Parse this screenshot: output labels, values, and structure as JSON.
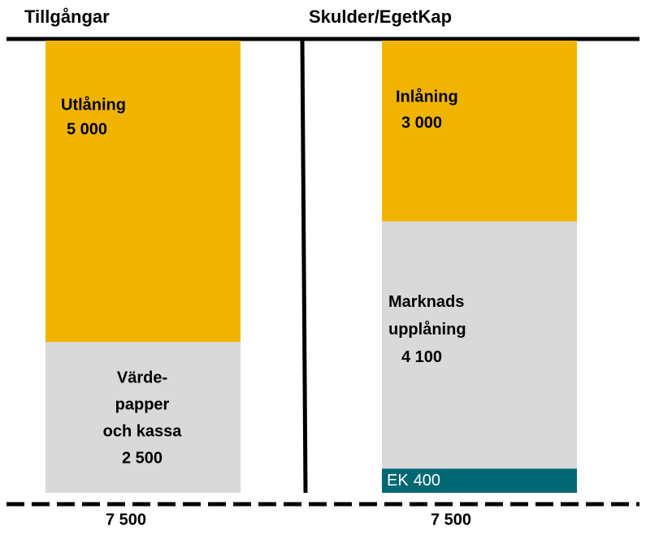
{
  "columns": [
    {
      "header": "Tillgångar",
      "total": 7500,
      "total_label": "7 500",
      "segments": [
        {
          "label": [
            "Utlåning"
          ],
          "value": 5000,
          "value_label": "5 000",
          "color": "#f0b400"
        },
        {
          "label": [
            "Värde-",
            "papper",
            "och kassa"
          ],
          "value": 2500,
          "value_label": "2 500",
          "color": "#d9d9d9"
        }
      ]
    },
    {
      "header": "Skulder/EgetKap",
      "total": 7500,
      "total_label": "7 500",
      "segments": [
        {
          "label": [
            "Inlåning"
          ],
          "value": 3000,
          "value_label": "3 000",
          "color": "#f0b400"
        },
        {
          "label": [
            "Marknads",
            "upplåning"
          ],
          "value": 4100,
          "value_label": "4 100",
          "color": "#d9d9d9"
        },
        {
          "label": [
            "EK"
          ],
          "value": 400,
          "value_label": "400",
          "color": "#006872"
        }
      ]
    }
  ]
}
